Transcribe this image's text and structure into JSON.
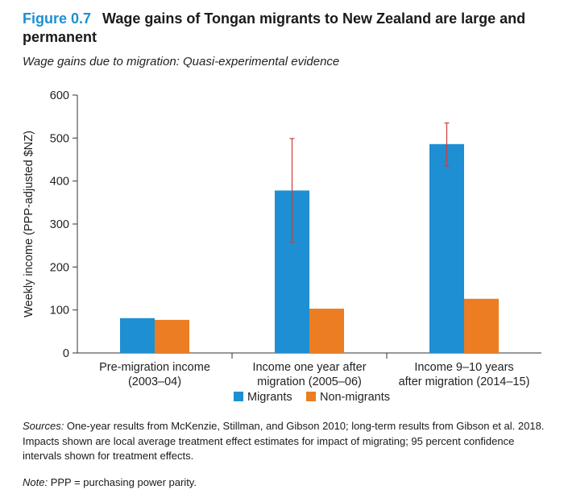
{
  "figure": {
    "number": "Figure 0.7",
    "title": "Wage gains of Tongan migrants to New Zealand are large and permanent",
    "subtitle": "Wage gains due to migration: Quasi-experimental evidence"
  },
  "chart_data": {
    "type": "bar",
    "title": "Wage gains due to migration: Quasi-experimental evidence",
    "ylabel": "Weekly income (PPP-adjusted $NZ)",
    "xlabel": "",
    "ylim": [
      0,
      600
    ],
    "yticks": [
      0,
      100,
      200,
      300,
      400,
      500,
      600
    ],
    "categories": [
      [
        "Pre-migration income",
        "(2003–04)"
      ],
      [
        "Income one year after",
        "migration (2005–06)"
      ],
      [
        "Income 9–10 years",
        "after migration (2014–15)"
      ]
    ],
    "series": [
      {
        "name": "Migrants",
        "color": "#1d8fd2",
        "values": [
          81,
          378,
          486
        ],
        "error": [
          null,
          [
            258,
            499
          ],
          [
            435,
            535
          ]
        ]
      },
      {
        "name": "Non-migrants",
        "color": "#ec7d22",
        "values": [
          77,
          103,
          126
        ],
        "error": [
          null,
          null,
          null
        ]
      }
    ],
    "error_color": "#d23b3b",
    "legend_position": "bottom-center",
    "grid": false
  },
  "sources": {
    "label": "Sources:",
    "text": " One-year results from McKenzie, Stillman, and Gibson 2010; long-term results from Gibson et al. 2018. Impacts shown are local average treatment effect estimates for impact of migrating; 95 percent confidence intervals shown for treatment effects."
  },
  "note": {
    "label": "Note:",
    "text": " PPP = purchasing power parity."
  }
}
